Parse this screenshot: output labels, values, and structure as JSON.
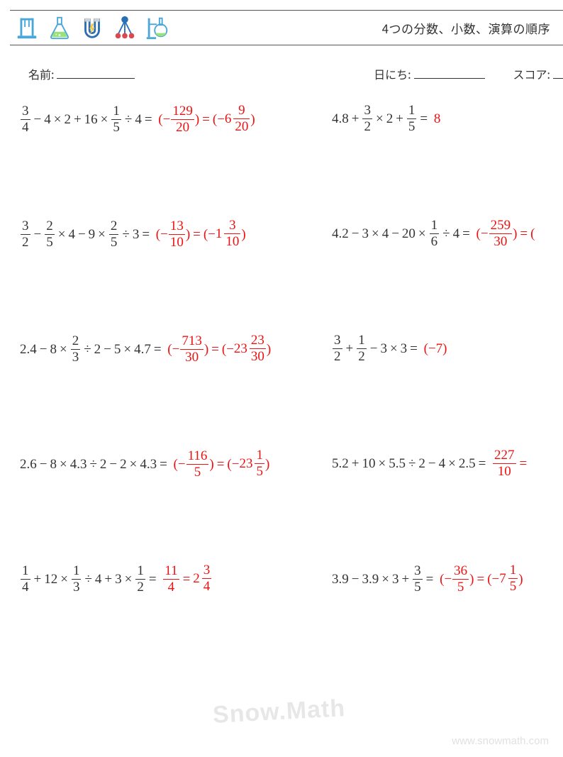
{
  "header": {
    "title": "4つの分数、小数、演算の順序",
    "icon_colors": {
      "stand": "#49a7d9",
      "flask": "#49a7d9",
      "flask_liquid": "#9be07a",
      "magnet": "#2a6fb5",
      "magnet_bolt": "#f2c94c",
      "molecule": "#2a6fb5",
      "molecule_node": "#d94b4b",
      "dist": "#49a7d9",
      "dist_bulb": "#9be07a"
    }
  },
  "meta": {
    "name_label": "名前:",
    "date_label": "日にち:",
    "score_label": "スコア:"
  },
  "problems": [
    [
      {
        "expr": [
          {
            "frac": [
              3,
              4
            ]
          },
          "−",
          "4",
          "×",
          "2",
          "+",
          "16",
          "×",
          {
            "frac": [
              1,
              5
            ]
          },
          "÷",
          "4",
          "="
        ],
        "ans": [
          "(−",
          {
            "frac": [
              129,
              20
            ]
          },
          ")",
          "=",
          "(−",
          {
            "mixed": [
              6,
              9,
              20
            ]
          },
          ")"
        ]
      },
      {
        "expr": [
          "4.8",
          "+",
          {
            "frac": [
              3,
              2
            ]
          },
          "×",
          "2",
          "+",
          {
            "frac": [
              1,
              5
            ]
          },
          "="
        ],
        "ans": [
          "8"
        ]
      }
    ],
    [
      {
        "expr": [
          {
            "frac": [
              3,
              2
            ]
          },
          "−",
          {
            "frac": [
              2,
              5
            ]
          },
          "×",
          "4",
          "−",
          "9",
          "×",
          {
            "frac": [
              2,
              5
            ]
          },
          "÷",
          "3",
          "="
        ],
        "ans": [
          "(−",
          {
            "frac": [
              13,
              10
            ]
          },
          ")",
          "=",
          "(−",
          {
            "mixed": [
              1,
              3,
              10
            ]
          },
          ")"
        ]
      },
      {
        "expr": [
          "4.2",
          "−",
          "3",
          "×",
          "4",
          "−",
          "20",
          "×",
          {
            "frac": [
              1,
              6
            ]
          },
          "÷",
          "4",
          "="
        ],
        "ans": [
          "(−",
          {
            "frac": [
              259,
              30
            ]
          },
          ")",
          "=",
          "("
        ]
      }
    ],
    [
      {
        "expr": [
          "2.4",
          "−",
          "8",
          "×",
          {
            "frac": [
              2,
              3
            ]
          },
          "÷",
          "2",
          "−",
          "5",
          "×",
          "4.7",
          "="
        ],
        "ans": [
          "(−",
          {
            "frac": [
              713,
              30
            ]
          },
          ")",
          "=",
          "(−",
          {
            "mixed": [
              23,
              23,
              30
            ]
          },
          ")"
        ]
      },
      {
        "expr": [
          {
            "frac": [
              3,
              2
            ]
          },
          "+",
          {
            "frac": [
              1,
              2
            ]
          },
          "−",
          "3",
          "×",
          "3",
          "="
        ],
        "ans": [
          "(−7)"
        ]
      }
    ],
    [
      {
        "expr": [
          "2.6",
          "−",
          "8",
          "×",
          "4.3",
          "÷",
          "2",
          "−",
          "2",
          "×",
          "4.3",
          "="
        ],
        "ans": [
          "(−",
          {
            "frac": [
              116,
              5
            ]
          },
          ")",
          "=",
          "(−",
          {
            "mixed": [
              23,
              1,
              5
            ]
          },
          ")"
        ]
      },
      {
        "expr": [
          "5.2",
          "+",
          "10",
          "×",
          "5.5",
          "÷",
          "2",
          "−",
          "4",
          "×",
          "2.5",
          "="
        ],
        "ans": [
          {
            "frac": [
              227,
              10
            ]
          },
          "="
        ]
      }
    ],
    [
      {
        "expr": [
          {
            "frac": [
              1,
              4
            ]
          },
          "+",
          "12",
          "×",
          {
            "frac": [
              1,
              3
            ]
          },
          "÷",
          "4",
          "+",
          "3",
          "×",
          {
            "frac": [
              1,
              2
            ]
          },
          "="
        ],
        "ans": [
          {
            "frac": [
              11,
              4
            ]
          },
          "=",
          {
            "mixed": [
              2,
              3,
              4
            ]
          }
        ]
      },
      {
        "expr": [
          "3.9",
          "−",
          "3.9",
          "×",
          "3",
          "+",
          {
            "frac": [
              3,
              5
            ]
          },
          "="
        ],
        "ans": [
          "(−",
          {
            "frac": [
              36,
              5
            ]
          },
          ")",
          "=",
          "(−",
          {
            "mixed": [
              7,
              1,
              5
            ]
          },
          ")"
        ]
      }
    ]
  ],
  "watermark": {
    "text": "Snow.Math",
    "url": "www.snowmath.com"
  }
}
